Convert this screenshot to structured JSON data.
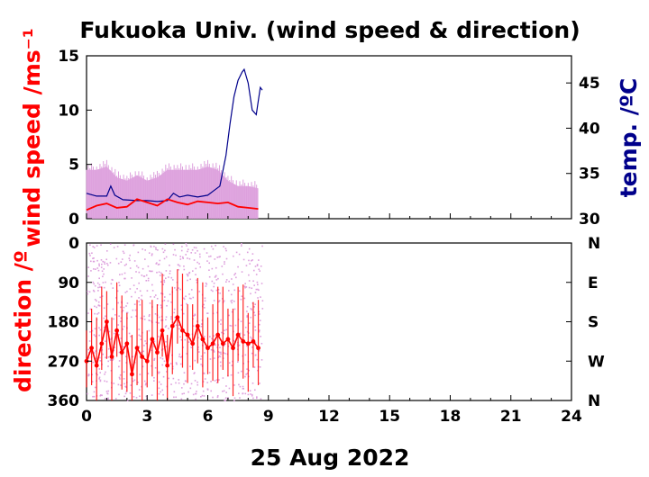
{
  "title": "Fukuoka Univ. (wind speed & direction)",
  "date_label": "25 Aug 2022",
  "colors": {
    "speed": "#ff0000",
    "gust_band": "#dda0dd",
    "temperature": "#00008b",
    "direction": "#ff0000",
    "direction_scatter": "#dda0dd"
  },
  "chart_data": [
    {
      "type": "line",
      "panel": "top",
      "ylabel": "wind speed /ms⁻¹",
      "y2label": "temp. /ºC",
      "xlim": [
        0,
        24
      ],
      "ylim": [
        0,
        15
      ],
      "y2lim": [
        30,
        48
      ],
      "x_ticks": [
        0,
        3,
        6,
        9,
        12,
        15,
        18,
        21,
        24
      ],
      "y_ticks": [
        0,
        5,
        10,
        15
      ],
      "y2_ticks": [
        30,
        35,
        40,
        45
      ],
      "series": [
        {
          "axis": "left",
          "x": [
            0,
            0.5,
            1,
            1.5,
            2,
            2.5,
            3,
            3.5,
            4,
            4.5,
            5,
            5.5,
            6,
            6.5,
            7,
            7.5,
            8,
            8.5
          ],
          "y": [
            0.8,
            1.2,
            1.4,
            1.0,
            1.1,
            1.8,
            1.5,
            1.2,
            1.8,
            1.5,
            1.3,
            1.6,
            1.5,
            1.4,
            1.5,
            1.1,
            1.0,
            0.9
          ]
        },
        {
          "axis": "left",
          "x": [
            0,
            0.5,
            1,
            1.5,
            2,
            2.5,
            3,
            3.5,
            4,
            4.5,
            5,
            5.5,
            6,
            6.5,
            7,
            7.5,
            8,
            8.5
          ],
          "y": [
            4.5,
            4.5,
            4.8,
            3.8,
            3.5,
            4.0,
            3.5,
            3.8,
            4.5,
            4.5,
            4.5,
            4.5,
            4.8,
            4.5,
            3.5,
            3.0,
            3.0,
            2.8
          ]
        },
        {
          "axis": "right",
          "x": [
            0,
            0.5,
            1,
            1.2,
            1.4,
            1.8,
            2.5,
            3,
            3.5,
            4,
            4.3,
            4.6,
            5,
            5.5,
            6,
            6.3,
            6.6,
            6.9,
            7.1,
            7.3,
            7.5,
            7.7,
            7.8,
            8.0,
            8.2,
            8.4,
            8.5,
            8.6,
            8.7
          ],
          "y": [
            32.8,
            32.5,
            32.5,
            33.6,
            32.6,
            32.1,
            32.0,
            32.0,
            31.9,
            32.0,
            32.8,
            32.4,
            32.6,
            32.4,
            32.6,
            33.1,
            33.6,
            37.0,
            40.5,
            43.5,
            45.3,
            46.2,
            46.5,
            45.0,
            42.0,
            41.5,
            43.0,
            44.5,
            44.2
          ]
        }
      ]
    },
    {
      "type": "scatter",
      "panel": "bottom",
      "ylabel": "direction /º",
      "xlabel": "25 Aug 2022",
      "xlim": [
        0,
        24
      ],
      "ylim": [
        360,
        0
      ],
      "x_ticks": [
        0,
        3,
        6,
        9,
        12,
        15,
        18,
        21,
        24
      ],
      "y_ticks": [
        0,
        90,
        180,
        270,
        360
      ],
      "y2_tick_labels": [
        "N",
        "E",
        "S",
        "W",
        "N"
      ],
      "series": [
        {
          "x": [
            0,
            0.25,
            0.5,
            0.75,
            1,
            1.25,
            1.5,
            1.75,
            2,
            2.25,
            2.5,
            2.75,
            3,
            3.25,
            3.5,
            3.75,
            4,
            4.25,
            4.5,
            4.75,
            5,
            5.25,
            5.5,
            5.75,
            6,
            6.25,
            6.5,
            6.75,
            7,
            7.25,
            7.5,
            7.75,
            8,
            8.25,
            8.5
          ],
          "y": [
            270,
            240,
            280,
            230,
            180,
            260,
            200,
            250,
            230,
            300,
            240,
            260,
            270,
            220,
            250,
            200,
            280,
            190,
            170,
            200,
            210,
            230,
            190,
            220,
            240,
            230,
            210,
            230,
            220,
            240,
            210,
            225,
            230,
            225,
            240
          ]
        }
      ]
    }
  ]
}
